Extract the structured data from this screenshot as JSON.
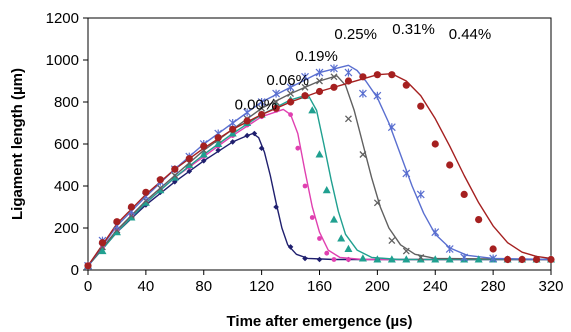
{
  "chart_data": {
    "type": "scatter",
    "title": "",
    "xlabel": "Time after emergence (µs)",
    "ylabel": "Ligament length (µm)",
    "xlim": [
      0,
      320
    ],
    "ylim": [
      0,
      1200
    ],
    "xticks": [
      0,
      40,
      80,
      120,
      160,
      200,
      240,
      280,
      320
    ],
    "yticks": [
      0,
      200,
      400,
      600,
      800,
      1000,
      1200
    ],
    "grid": false,
    "legend": "none",
    "series": [
      {
        "name": "0.00%",
        "color": "#1f1f6e",
        "marker": "diamond",
        "points": [
          [
            0,
            20
          ],
          [
            10,
            100
          ],
          [
            20,
            180
          ],
          [
            30,
            250
          ],
          [
            40,
            310
          ],
          [
            50,
            370
          ],
          [
            60,
            420
          ],
          [
            70,
            470
          ],
          [
            80,
            520
          ],
          [
            90,
            570
          ],
          [
            100,
            610
          ],
          [
            110,
            640
          ],
          [
            115,
            650
          ],
          [
            120,
            580
          ],
          [
            130,
            300
          ],
          [
            140,
            110
          ],
          [
            150,
            55
          ],
          [
            160,
            50
          ],
          [
            180,
            50
          ],
          [
            200,
            50
          ]
        ],
        "fit": [
          [
            0,
            20
          ],
          [
            10,
            100
          ],
          [
            20,
            180
          ],
          [
            40,
            310
          ],
          [
            60,
            420
          ],
          [
            80,
            520
          ],
          [
            100,
            610
          ],
          [
            110,
            640
          ],
          [
            114,
            650
          ],
          [
            118,
            630
          ],
          [
            122,
            560
          ],
          [
            126,
            450
          ],
          [
            130,
            320
          ],
          [
            134,
            200
          ],
          [
            138,
            120
          ],
          [
            144,
            75
          ],
          [
            152,
            55
          ],
          [
            170,
            50
          ],
          [
            320,
            50
          ]
        ]
      },
      {
        "name": "0.06%",
        "color": "#e040b0",
        "marker": "dot",
        "points": [
          [
            0,
            20
          ],
          [
            10,
            110
          ],
          [
            20,
            190
          ],
          [
            30,
            260
          ],
          [
            40,
            320
          ],
          [
            50,
            380
          ],
          [
            60,
            440
          ],
          [
            70,
            490
          ],
          [
            80,
            540
          ],
          [
            90,
            590
          ],
          [
            100,
            640
          ],
          [
            110,
            690
          ],
          [
            120,
            730
          ],
          [
            130,
            760
          ],
          [
            140,
            740
          ],
          [
            145,
            580
          ],
          [
            150,
            400
          ],
          [
            155,
            250
          ],
          [
            160,
            150
          ],
          [
            165,
            80
          ],
          [
            170,
            50
          ],
          [
            180,
            50
          ]
        ],
        "fit": [
          [
            0,
            20
          ],
          [
            20,
            190
          ],
          [
            40,
            320
          ],
          [
            60,
            440
          ],
          [
            80,
            540
          ],
          [
            100,
            640
          ],
          [
            120,
            730
          ],
          [
            135,
            765
          ],
          [
            140,
            740
          ],
          [
            145,
            650
          ],
          [
            150,
            470
          ],
          [
            155,
            300
          ],
          [
            160,
            180
          ],
          [
            166,
            95
          ],
          [
            174,
            60
          ],
          [
            190,
            50
          ],
          [
            320,
            50
          ]
        ]
      },
      {
        "name": "0.19%",
        "color": "#20a090",
        "marker": "triangle",
        "points": [
          [
            0,
            20
          ],
          [
            10,
            90
          ],
          [
            20,
            180
          ],
          [
            30,
            250
          ],
          [
            40,
            320
          ],
          [
            50,
            380
          ],
          [
            60,
            440
          ],
          [
            70,
            500
          ],
          [
            80,
            550
          ],
          [
            90,
            600
          ],
          [
            100,
            650
          ],
          [
            110,
            700
          ],
          [
            120,
            740
          ],
          [
            130,
            780
          ],
          [
            140,
            810
          ],
          [
            150,
            830
          ],
          [
            155,
            760
          ],
          [
            160,
            550
          ],
          [
            165,
            380
          ],
          [
            170,
            240
          ],
          [
            175,
            150
          ],
          [
            180,
            100
          ],
          [
            190,
            55
          ],
          [
            200,
            50
          ],
          [
            210,
            50
          ],
          [
            220,
            50
          ],
          [
            230,
            50
          ],
          [
            240,
            50
          ],
          [
            250,
            50
          ],
          [
            260,
            50
          ],
          [
            270,
            50
          ],
          [
            280,
            50
          ],
          [
            290,
            50
          ],
          [
            300,
            50
          ],
          [
            310,
            50
          ],
          [
            320,
            50
          ]
        ],
        "fit": [
          [
            0,
            20
          ],
          [
            20,
            180
          ],
          [
            40,
            320
          ],
          [
            60,
            440
          ],
          [
            80,
            550
          ],
          [
            100,
            650
          ],
          [
            120,
            740
          ],
          [
            140,
            810
          ],
          [
            152,
            835
          ],
          [
            158,
            760
          ],
          [
            163,
            600
          ],
          [
            168,
            430
          ],
          [
            173,
            280
          ],
          [
            178,
            170
          ],
          [
            186,
            95
          ],
          [
            196,
            60
          ],
          [
            215,
            50
          ],
          [
            320,
            50
          ]
        ]
      },
      {
        "name": "0.25%",
        "color": "#606060",
        "marker": "x",
        "points": [
          [
            0,
            20
          ],
          [
            10,
            110
          ],
          [
            20,
            190
          ],
          [
            30,
            260
          ],
          [
            40,
            330
          ],
          [
            50,
            390
          ],
          [
            60,
            450
          ],
          [
            70,
            510
          ],
          [
            80,
            570
          ],
          [
            90,
            620
          ],
          [
            100,
            670
          ],
          [
            110,
            720
          ],
          [
            120,
            770
          ],
          [
            130,
            800
          ],
          [
            140,
            840
          ],
          [
            150,
            870
          ],
          [
            160,
            900
          ],
          [
            170,
            920
          ],
          [
            180,
            720
          ],
          [
            190,
            550
          ],
          [
            200,
            320
          ],
          [
            210,
            140
          ],
          [
            220,
            90
          ],
          [
            230,
            60
          ]
        ],
        "fit": [
          [
            0,
            20
          ],
          [
            20,
            190
          ],
          [
            40,
            330
          ],
          [
            60,
            450
          ],
          [
            80,
            570
          ],
          [
            100,
            670
          ],
          [
            120,
            770
          ],
          [
            140,
            840
          ],
          [
            160,
            900
          ],
          [
            172,
            925
          ],
          [
            178,
            880
          ],
          [
            184,
            760
          ],
          [
            190,
            600
          ],
          [
            196,
            440
          ],
          [
            202,
            300
          ],
          [
            208,
            200
          ],
          [
            216,
            120
          ],
          [
            226,
            75
          ],
          [
            240,
            55
          ],
          [
            320,
            50
          ]
        ]
      },
      {
        "name": "0.31%",
        "color": "#5a6fd0",
        "marker": "asterisk",
        "points": [
          [
            0,
            20
          ],
          [
            10,
            140
          ],
          [
            20,
            210
          ],
          [
            30,
            280
          ],
          [
            40,
            350
          ],
          [
            50,
            420
          ],
          [
            60,
            480
          ],
          [
            70,
            540
          ],
          [
            80,
            600
          ],
          [
            90,
            650
          ],
          [
            100,
            700
          ],
          [
            110,
            750
          ],
          [
            120,
            800
          ],
          [
            130,
            840
          ],
          [
            140,
            870
          ],
          [
            150,
            920
          ],
          [
            160,
            940
          ],
          [
            170,
            960
          ],
          [
            180,
            940
          ],
          [
            190,
            840
          ],
          [
            200,
            830
          ],
          [
            210,
            680
          ],
          [
            220,
            460
          ],
          [
            230,
            360
          ],
          [
            240,
            180
          ],
          [
            250,
            100
          ],
          [
            260,
            60
          ],
          [
            280,
            55
          ]
        ],
        "fit": [
          [
            0,
            20
          ],
          [
            20,
            210
          ],
          [
            40,
            350
          ],
          [
            60,
            480
          ],
          [
            80,
            600
          ],
          [
            100,
            700
          ],
          [
            120,
            800
          ],
          [
            140,
            870
          ],
          [
            160,
            940
          ],
          [
            180,
            975
          ],
          [
            186,
            950
          ],
          [
            192,
            900
          ],
          [
            200,
            820
          ],
          [
            208,
            700
          ],
          [
            216,
            550
          ],
          [
            224,
            400
          ],
          [
            232,
            270
          ],
          [
            240,
            170
          ],
          [
            250,
            105
          ],
          [
            262,
            70
          ],
          [
            280,
            55
          ],
          [
            320,
            50
          ]
        ]
      },
      {
        "name": "0.44%",
        "color": "#a52020",
        "marker": "dot",
        "points": [
          [
            0,
            20
          ],
          [
            10,
            130
          ],
          [
            20,
            230
          ],
          [
            30,
            300
          ],
          [
            40,
            370
          ],
          [
            50,
            430
          ],
          [
            60,
            480
          ],
          [
            70,
            530
          ],
          [
            80,
            590
          ],
          [
            90,
            630
          ],
          [
            100,
            670
          ],
          [
            110,
            710
          ],
          [
            120,
            740
          ],
          [
            130,
            770
          ],
          [
            140,
            800
          ],
          [
            150,
            830
          ],
          [
            160,
            850
          ],
          [
            170,
            870
          ],
          [
            180,
            900
          ],
          [
            190,
            920
          ],
          [
            200,
            930
          ],
          [
            210,
            930
          ],
          [
            220,
            880
          ],
          [
            230,
            780
          ],
          [
            240,
            600
          ],
          [
            250,
            500
          ],
          [
            260,
            360
          ],
          [
            270,
            240
          ],
          [
            280,
            100
          ],
          [
            290,
            50
          ],
          [
            300,
            50
          ],
          [
            310,
            50
          ],
          [
            320,
            50
          ]
        ],
        "fit": [
          [
            0,
            20
          ],
          [
            20,
            220
          ],
          [
            40,
            360
          ],
          [
            60,
            480
          ],
          [
            80,
            580
          ],
          [
            100,
            670
          ],
          [
            120,
            740
          ],
          [
            140,
            800
          ],
          [
            160,
            850
          ],
          [
            180,
            890
          ],
          [
            200,
            930
          ],
          [
            210,
            935
          ],
          [
            220,
            900
          ],
          [
            230,
            830
          ],
          [
            240,
            720
          ],
          [
            250,
            590
          ],
          [
            260,
            450
          ],
          [
            270,
            320
          ],
          [
            280,
            210
          ],
          [
            290,
            130
          ],
          [
            300,
            85
          ],
          [
            310,
            65
          ],
          [
            320,
            55
          ]
        ]
      }
    ],
    "annotations": [
      {
        "text": "0.00%",
        "x": 116,
        "y": 765
      },
      {
        "text": "0.06%",
        "x": 138,
        "y": 880
      },
      {
        "text": "0.19%",
        "x": 158,
        "y": 995
      },
      {
        "text": "0.25%",
        "x": 185,
        "y": 1100
      },
      {
        "text": "0.31%",
        "x": 225,
        "y": 1125
      },
      {
        "text": "0.44%",
        "x": 264,
        "y": 1100
      }
    ]
  }
}
